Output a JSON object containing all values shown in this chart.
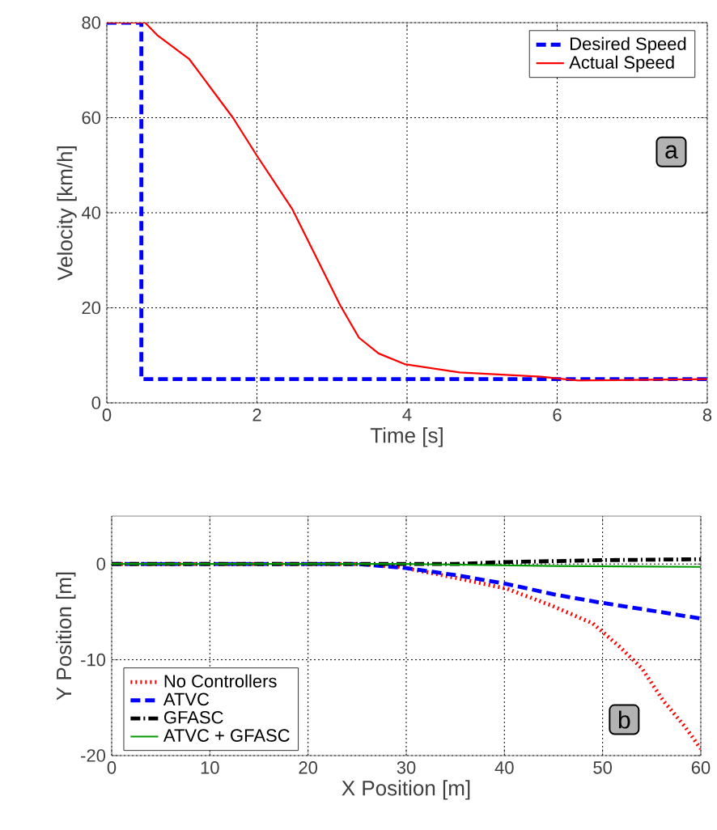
{
  "chart_data": [
    {
      "type": "line",
      "xlabel": "Time [s]",
      "ylabel": "Velocity [km/h]",
      "xlim": [
        0,
        8
      ],
      "ylim": [
        0,
        80
      ],
      "xticks": [
        0,
        2,
        4,
        6,
        8
      ],
      "yticks": [
        0,
        20,
        40,
        60,
        80
      ],
      "grid": true,
      "legend": "top right",
      "annotations": [
        "a"
      ],
      "series": [
        {
          "name": "Desired Speed",
          "color": "#0000ff",
          "line_style": "dashed",
          "x": [
            0,
            0.46,
            0.46,
            8
          ],
          "values": [
            80,
            80,
            5,
            5
          ]
        },
        {
          "name": "Actual Speed",
          "color": "#ff0000",
          "line_style": "solid",
          "x": [
            0,
            0.51,
            0.67,
            1.1,
            1.68,
            2.0,
            2.47,
            3.11,
            3.36,
            3.62,
            3.98,
            4.7,
            5.78,
            6.28,
            8
          ],
          "values": [
            80,
            80,
            77.4,
            72.3,
            60,
            52,
            40.8,
            20.5,
            13.7,
            10.4,
            8.1,
            6.4,
            5.5,
            4.7,
            5
          ]
        }
      ]
    },
    {
      "type": "line",
      "xlabel": "X Position [m]",
      "ylabel": "Y Position [m]",
      "xlim": [
        0,
        60
      ],
      "ylim": [
        -20,
        5
      ],
      "xticks": [
        0,
        10,
        20,
        30,
        40,
        50,
        60
      ],
      "yticks": [
        -20,
        -10,
        0
      ],
      "grid": true,
      "legend": "bottom left",
      "annotations": [
        "b"
      ],
      "series": [
        {
          "name": "No Controllers",
          "color": "#ff0000",
          "line_style": "dotted",
          "x": [
            0,
            25,
            29.3,
            35.3,
            40.3,
            44.7,
            49,
            51.8,
            54,
            56.2,
            58.4,
            60
          ],
          "values": [
            0,
            0,
            -0.3,
            -1.5,
            -2.6,
            -4.3,
            -6.2,
            -8.7,
            -10.9,
            -14.3,
            -17,
            -19.3
          ]
        },
        {
          "name": "ATVC",
          "color": "#0000ff",
          "line_style": "dashed",
          "x": [
            0,
            25,
            29.8,
            35.3,
            40.3,
            45.2,
            49.6,
            54.6,
            60
          ],
          "values": [
            0,
            0,
            -0.4,
            -1.2,
            -2.1,
            -3.2,
            -4,
            -4.8,
            -5.7
          ]
        },
        {
          "name": "GFASC",
          "color": "#000000",
          "line_style": "dashdot",
          "x": [
            0,
            35,
            40,
            50,
            60
          ],
          "values": [
            0,
            0,
            0.2,
            0.4,
            0.5
          ]
        },
        {
          "name": "ATVC + GFASC",
          "color": "#009900",
          "line_style": "solid",
          "x": [
            0,
            30,
            45,
            60
          ],
          "values": [
            0,
            0,
            -0.2,
            -0.3
          ]
        }
      ]
    }
  ]
}
